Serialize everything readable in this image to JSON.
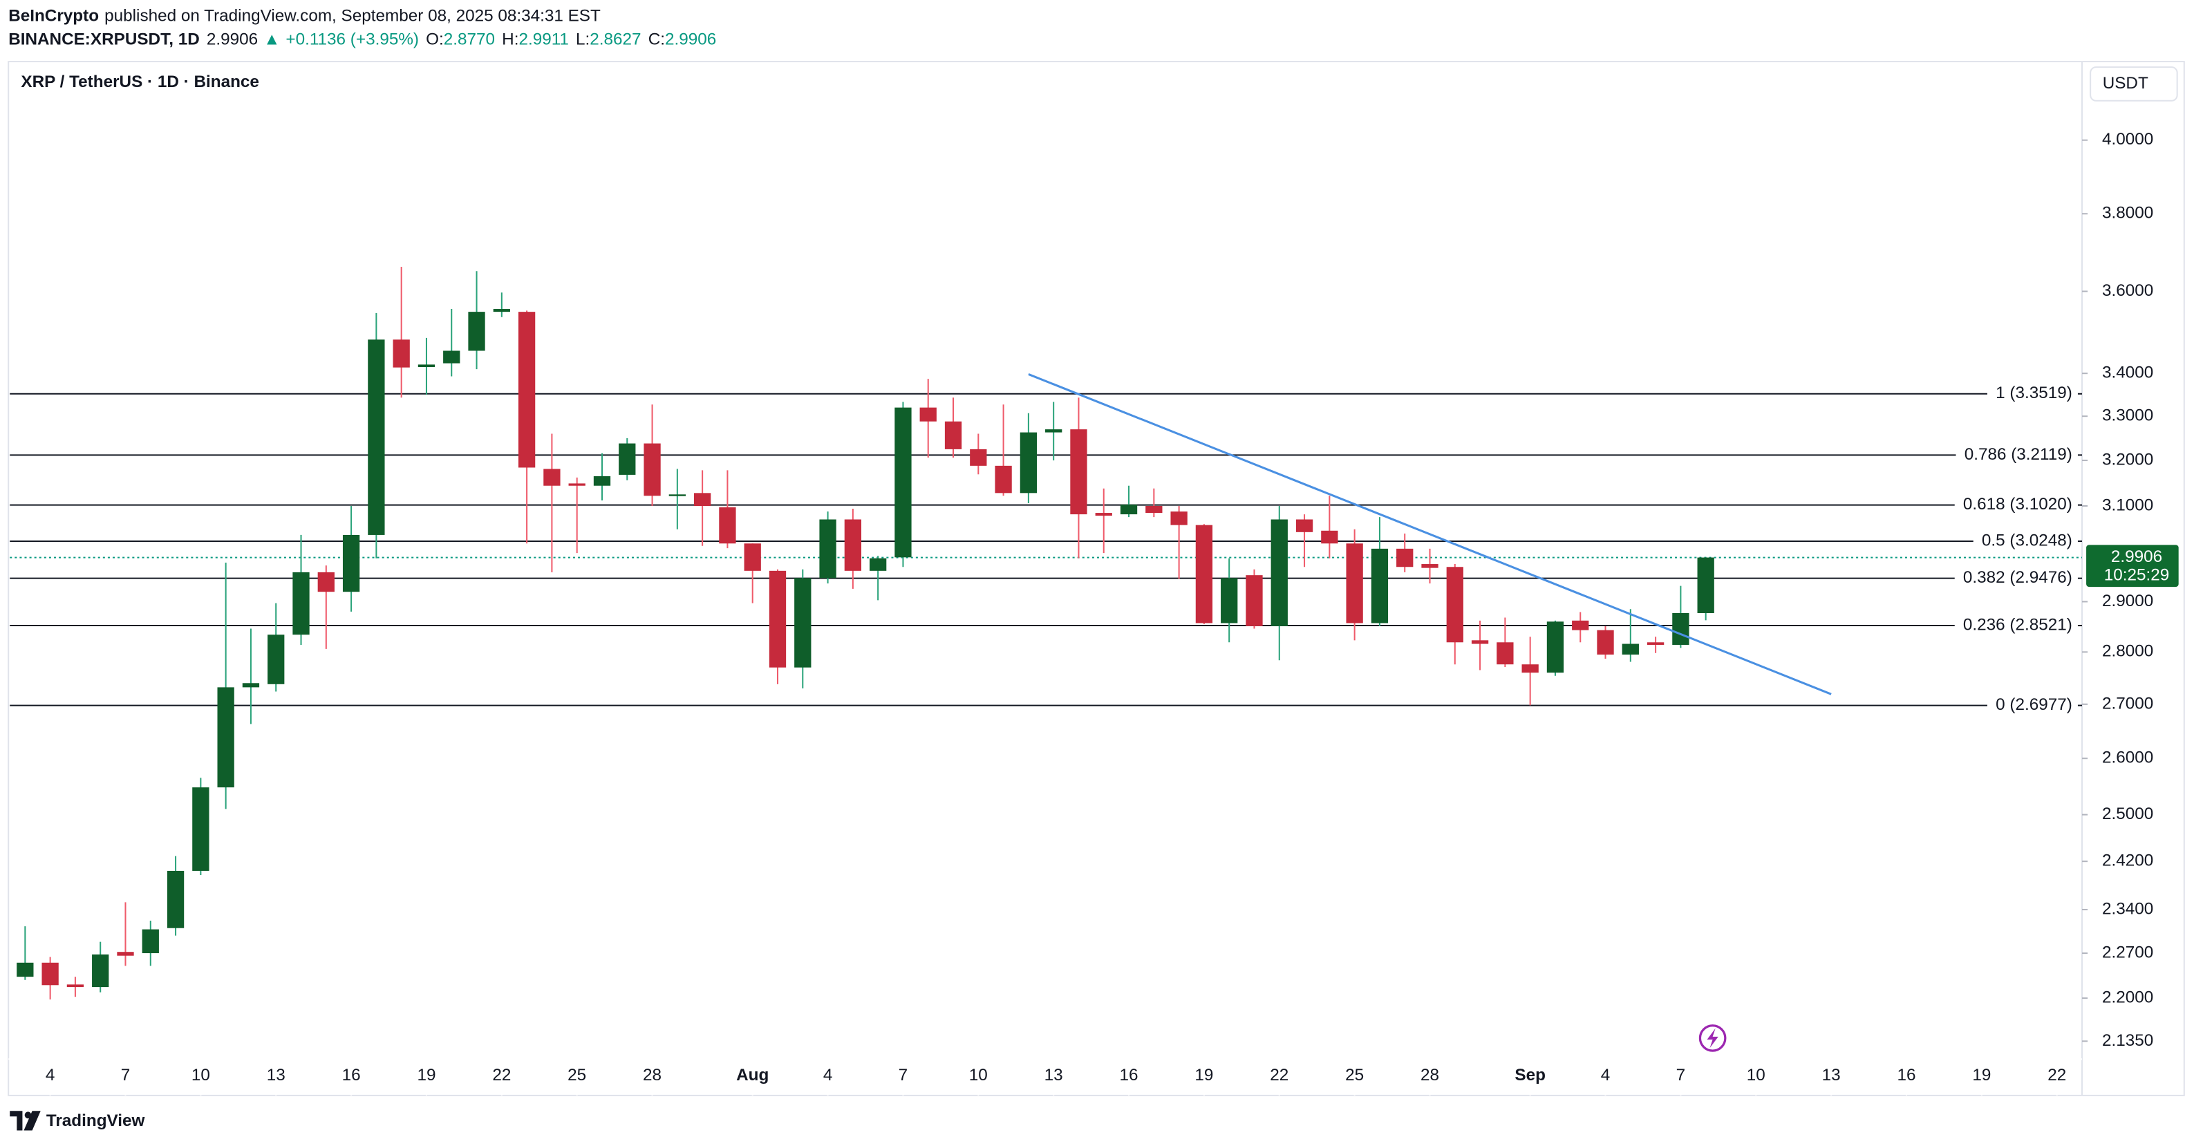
{
  "header": {
    "author": "BeInCrypto",
    "published": "published on TradingView.com, September 08, 2025 08:34:31 EST",
    "symbol": "BINANCE:XRPUSDT, 1D",
    "last": "2.9906",
    "arrow": "▲",
    "change": "+0.1136 (+3.95%)",
    "quote": [
      {
        "key": "O:",
        "value": "2.8770"
      },
      {
        "key": "H:",
        "value": "2.9911"
      },
      {
        "key": "L:",
        "value": "2.8627"
      },
      {
        "key": "C:",
        "value": "2.9906"
      }
    ]
  },
  "footer": {
    "logo": "TradingView"
  },
  "chart_data": {
    "type": "candlestick",
    "title": "XRP / TetherUS · 1D · Binance",
    "currency": "USDT",
    "countdown": "10:25:29",
    "log_scale": true,
    "up_color": "#0f5e2a",
    "down_color": "#c62a3c",
    "up_wick": "#2aa37a",
    "down_wick": "#ef5a6a",
    "x": [
      "2025-07-03",
      "2025-07-04",
      "2025-07-05",
      "2025-07-06",
      "2025-07-07",
      "2025-07-08",
      "2025-07-09",
      "2025-07-10",
      "2025-07-11",
      "2025-07-12",
      "2025-07-13",
      "2025-07-14",
      "2025-07-15",
      "2025-07-16",
      "2025-07-17",
      "2025-07-18",
      "2025-07-19",
      "2025-07-20",
      "2025-07-21",
      "2025-07-22",
      "2025-07-23",
      "2025-07-24",
      "2025-07-25",
      "2025-07-26",
      "2025-07-27",
      "2025-07-28",
      "2025-07-29",
      "2025-07-30",
      "2025-07-31",
      "2025-08-01",
      "2025-08-02",
      "2025-08-03",
      "2025-08-04",
      "2025-08-05",
      "2025-08-06",
      "2025-08-07",
      "2025-08-08",
      "2025-08-09",
      "2025-08-10",
      "2025-08-11",
      "2025-08-12",
      "2025-08-13",
      "2025-08-14",
      "2025-08-15",
      "2025-08-16",
      "2025-08-17",
      "2025-08-18",
      "2025-08-19",
      "2025-08-20",
      "2025-08-21",
      "2025-08-22",
      "2025-08-23",
      "2025-08-24",
      "2025-08-25",
      "2025-08-26",
      "2025-08-27",
      "2025-08-28",
      "2025-08-29",
      "2025-08-30",
      "2025-08-31",
      "2025-09-01",
      "2025-09-02",
      "2025-09-03",
      "2025-09-04",
      "2025-09-05",
      "2025-09-06",
      "2025-09-07",
      "2025-09-08"
    ],
    "open": [
      2.233,
      2.255,
      2.221,
      2.217,
      2.272,
      2.27,
      2.31,
      2.404,
      2.548,
      2.732,
      2.738,
      2.834,
      2.96,
      2.92,
      3.038,
      3.481,
      3.415,
      3.424,
      3.454,
      3.549,
      3.549,
      3.181,
      3.149,
      3.144,
      3.168,
      3.238,
      3.122,
      3.128,
      3.097,
      3.02,
      2.963,
      2.77,
      2.948,
      3.071,
      2.963,
      2.991,
      3.32,
      3.288,
      3.225,
      3.188,
      3.128,
      3.263,
      3.27,
      3.085,
      3.082,
      3.1,
      3.088,
      3.059,
      2.857,
      2.954,
      2.851,
      3.071,
      3.047,
      3.02,
      2.857,
      3.009,
      2.977,
      2.971,
      2.823,
      2.819,
      2.776,
      2.76,
      2.862,
      2.843,
      2.795,
      2.819,
      2.814,
      2.877
    ],
    "high": [
      2.313,
      2.264,
      2.233,
      2.288,
      2.352,
      2.322,
      2.429,
      2.565,
      2.98,
      2.846,
      2.897,
      3.038,
      2.974,
      3.1,
      3.546,
      3.662,
      3.485,
      3.556,
      3.651,
      3.597,
      3.552,
      3.26,
      3.162,
      3.216,
      3.25,
      3.327,
      3.181,
      3.178,
      3.178,
      3.02,
      2.966,
      2.966,
      3.088,
      3.094,
      2.994,
      3.333,
      3.387,
      3.343,
      3.26,
      3.327,
      3.307,
      3.333,
      3.343,
      3.138,
      3.144,
      3.138,
      3.1,
      3.061,
      2.989,
      2.966,
      3.1,
      3.082,
      3.122,
      3.05,
      3.076,
      3.041,
      3.009,
      2.977,
      2.862,
      2.868,
      2.83,
      2.862,
      2.879,
      2.851,
      2.885,
      2.83,
      2.932,
      2.9911
    ],
    "low": [
      2.228,
      2.198,
      2.202,
      2.209,
      2.25,
      2.25,
      2.298,
      2.397,
      2.51,
      2.663,
      2.724,
      2.814,
      2.806,
      2.88,
      2.989,
      3.343,
      3.35,
      3.393,
      3.41,
      3.536,
      3.02,
      2.96,
      3.0,
      3.112,
      3.156,
      3.1,
      3.05,
      3.015,
      3.01,
      2.897,
      2.738,
      2.73,
      2.937,
      2.926,
      2.903,
      2.971,
      3.206,
      3.206,
      3.169,
      3.122,
      3.106,
      3.2,
      2.989,
      3.0,
      3.076,
      3.076,
      2.946,
      2.855,
      2.819,
      2.846,
      2.784,
      2.971,
      2.989,
      2.823,
      2.851,
      2.96,
      2.937,
      2.776,
      2.765,
      2.771,
      2.698,
      2.754,
      2.819,
      2.787,
      2.781,
      2.798,
      2.808,
      2.8627
    ],
    "close": [
      2.255,
      2.22,
      2.217,
      2.268,
      2.266,
      2.308,
      2.404,
      2.548,
      2.732,
      2.74,
      2.834,
      2.96,
      2.92,
      3.038,
      3.481,
      3.414,
      3.421,
      3.454,
      3.549,
      3.556,
      3.184,
      3.144,
      3.144,
      3.165,
      3.238,
      3.122,
      3.125,
      3.1,
      3.02,
      2.963,
      2.77,
      2.948,
      3.071,
      2.963,
      2.989,
      3.32,
      3.288,
      3.225,
      3.188,
      3.128,
      3.263,
      3.27,
      3.082,
      3.079,
      3.103,
      3.085,
      3.059,
      2.857,
      2.948,
      2.851,
      3.071,
      3.044,
      3.02,
      2.857,
      3.009,
      2.971,
      2.969,
      2.819,
      2.816,
      2.776,
      2.76,
      2.86,
      2.843,
      2.795,
      2.816,
      2.814,
      2.877,
      2.9906
    ],
    "xlim": [
      "2025-07-02",
      "2025-09-23"
    ],
    "xticks": [
      {
        "value": "2025-07-04",
        "label": "4"
      },
      {
        "value": "2025-07-07",
        "label": "7"
      },
      {
        "value": "2025-07-10",
        "label": "10"
      },
      {
        "value": "2025-07-13",
        "label": "13"
      },
      {
        "value": "2025-07-16",
        "label": "16"
      },
      {
        "value": "2025-07-19",
        "label": "19"
      },
      {
        "value": "2025-07-22",
        "label": "22"
      },
      {
        "value": "2025-07-25",
        "label": "25"
      },
      {
        "value": "2025-07-28",
        "label": "28"
      },
      {
        "value": "2025-08-01",
        "label": "Aug"
      },
      {
        "value": "2025-08-04",
        "label": "4"
      },
      {
        "value": "2025-08-07",
        "label": "7"
      },
      {
        "value": "2025-08-10",
        "label": "10"
      },
      {
        "value": "2025-08-13",
        "label": "13"
      },
      {
        "value": "2025-08-16",
        "label": "16"
      },
      {
        "value": "2025-08-19",
        "label": "19"
      },
      {
        "value": "2025-08-22",
        "label": "22"
      },
      {
        "value": "2025-08-25",
        "label": "25"
      },
      {
        "value": "2025-08-28",
        "label": "28"
      },
      {
        "value": "2025-09-01",
        "label": "Sep"
      },
      {
        "value": "2025-09-04",
        "label": "4"
      },
      {
        "value": "2025-09-07",
        "label": "7"
      },
      {
        "value": "2025-09-10",
        "label": "10"
      },
      {
        "value": "2025-09-13",
        "label": "13"
      },
      {
        "value": "2025-09-16",
        "label": "16"
      },
      {
        "value": "2025-09-19",
        "label": "19"
      },
      {
        "value": "2025-09-22",
        "label": "22"
      }
    ],
    "ylim": [
      2.0557,
      4.2251
    ],
    "yticks": [
      {
        "value": 4.0,
        "label": "4.0000"
      },
      {
        "value": 3.8,
        "label": "3.8000"
      },
      {
        "value": 3.6,
        "label": "3.6000"
      },
      {
        "value": 3.4,
        "label": "3.4000"
      },
      {
        "value": 3.3,
        "label": "3.3000"
      },
      {
        "value": 3.2,
        "label": "3.2000"
      },
      {
        "value": 3.1,
        "label": "3.1000"
      },
      {
        "value": 2.9,
        "label": "2.9000"
      },
      {
        "value": 2.8,
        "label": "2.8000"
      },
      {
        "value": 2.7,
        "label": "2.7000"
      },
      {
        "value": 2.6,
        "label": "2.6000"
      },
      {
        "value": 2.5,
        "label": "2.5000"
      },
      {
        "value": 2.42,
        "label": "2.4200"
      },
      {
        "value": 2.34,
        "label": "2.3400"
      },
      {
        "value": 2.27,
        "label": "2.2700"
      },
      {
        "value": 2.2,
        "label": "2.2000"
      },
      {
        "value": 2.135,
        "label": "2.1350"
      }
    ],
    "fib_levels": [
      {
        "value": 3.3519,
        "label": "1 (3.3519)"
      },
      {
        "value": 3.2119,
        "label": "0.786 (3.2119)"
      },
      {
        "value": 3.102,
        "label": "0.618 (3.1020)"
      },
      {
        "value": 3.0248,
        "label": "0.5 (3.0248)"
      },
      {
        "value": 2.9476,
        "label": "0.382 (2.9476)"
      },
      {
        "value": 2.8521,
        "label": "0.236 (2.8521)"
      },
      {
        "value": 2.6977,
        "label": "0 (2.6977)"
      }
    ],
    "trendline": {
      "x": [
        "2025-08-12",
        "2025-09-13"
      ],
      "y": [
        3.398,
        2.719
      ],
      "color": "#4a90e2"
    }
  }
}
